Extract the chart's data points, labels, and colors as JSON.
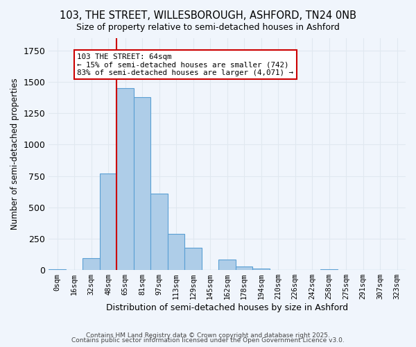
{
  "title1": "103, THE STREET, WILLESBOROUGH, ASHFORD, TN24 0NB",
  "title2": "Size of property relative to semi-detached houses in Ashford",
  "xlabel": "Distribution of semi-detached houses by size in Ashford",
  "ylabel": "Number of semi-detached properties",
  "bar_labels": [
    "0sqm",
    "16sqm",
    "32sqm",
    "48sqm",
    "65sqm",
    "81sqm",
    "97sqm",
    "113sqm",
    "129sqm",
    "145sqm",
    "162sqm",
    "178sqm",
    "194sqm",
    "210sqm",
    "226sqm",
    "242sqm",
    "258sqm",
    "275sqm",
    "291sqm",
    "307sqm",
    "323sqm"
  ],
  "bar_values": [
    5,
    0,
    95,
    770,
    1450,
    1380,
    610,
    290,
    175,
    0,
    85,
    28,
    12,
    0,
    0,
    0,
    7,
    0,
    0,
    0,
    0
  ],
  "bar_color": "#aecde8",
  "bar_edge_color": "#5a9fd4",
  "grid_color": "#e0e8f0",
  "background_color": "#f0f5fc",
  "vline_x": 4,
  "vline_color": "#cc0000",
  "annotation_text": "103 THE STREET: 64sqm\n← 15% of semi-detached houses are smaller (742)\n83% of semi-detached houses are larger (4,071) →",
  "annotation_box_color": "#ffffff",
  "annotation_box_edge": "#cc0000",
  "ylim": [
    0,
    1850
  ],
  "footer1": "Contains HM Land Registry data © Crown copyright and database right 2025.",
  "footer2": "Contains public sector information licensed under the Open Government Licence v3.0."
}
